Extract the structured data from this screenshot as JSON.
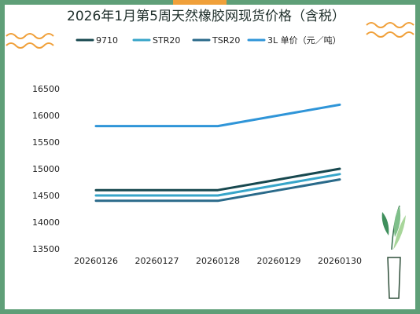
{
  "chart_data": {
    "type": "line",
    "title": "2026年1月第5周天然橡胶网现货价格（含税）",
    "categories": [
      "20260126",
      "20260127",
      "20260128",
      "20260129",
      "20260130"
    ],
    "ylim": [
      13500,
      16500
    ],
    "yticks": [
      13500,
      14000,
      14500,
      15000,
      15500,
      16000,
      16500
    ],
    "grid": false,
    "legend_position": "top",
    "series": [
      {
        "name": "9710",
        "color": "#17484f",
        "values": [
          14600,
          14600,
          14600,
          14800,
          15000
        ]
      },
      {
        "name": "STR20",
        "color": "#37a5c9",
        "values": [
          14500,
          14500,
          14500,
          14700,
          14900
        ]
      },
      {
        "name": "TSR20",
        "color": "#2a6a8a",
        "values": [
          14400,
          14400,
          14400,
          14600,
          14800
        ]
      },
      {
        "name": "3L 单价（元／吨）",
        "color": "#2f95d8",
        "values": [
          15800,
          15800,
          15800,
          16000,
          16200
        ]
      }
    ]
  }
}
